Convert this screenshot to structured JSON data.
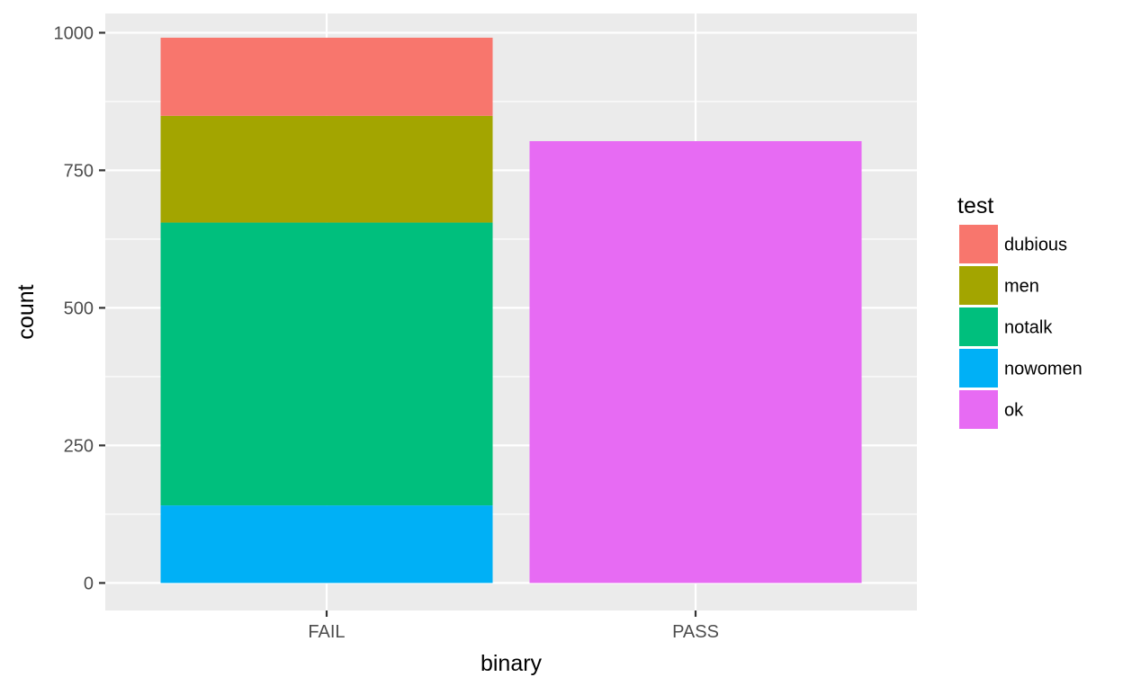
{
  "chart_data": {
    "type": "bar",
    "stacked": true,
    "categories": [
      "FAIL",
      "PASS"
    ],
    "series": [
      {
        "name": "dubious",
        "color": "#F8766D",
        "values": [
          142,
          0
        ]
      },
      {
        "name": "men",
        "color": "#A3A500",
        "values": [
          194,
          0
        ]
      },
      {
        "name": "notalk",
        "color": "#00BF7D",
        "values": [
          514,
          0
        ]
      },
      {
        "name": "nowomen",
        "color": "#00B0F6",
        "values": [
          141,
          0
        ]
      },
      {
        "name": "ok",
        "color": "#E76BF3",
        "values": [
          0,
          803
        ]
      }
    ],
    "stack_order_bottom_to_top": [
      "nowomen",
      "notalk",
      "men",
      "dubious",
      "ok"
    ],
    "xlabel": "binary",
    "ylabel": "count",
    "ylim": [
      -50,
      1035
    ],
    "yticks": [
      0,
      250,
      500,
      750,
      1000
    ],
    "ytick_labels": [
      "0",
      "250",
      "500",
      "750",
      "1000"
    ],
    "legend": {
      "title": "test",
      "placement": "right"
    },
    "grid": true,
    "panel_background": "#EBEBEB"
  }
}
